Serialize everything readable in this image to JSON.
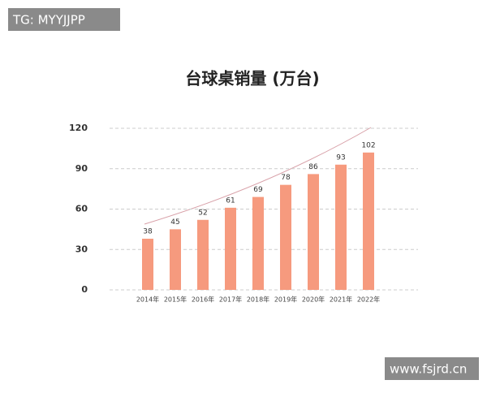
{
  "watermarks": [
    "TG: MYYJJPP",
    "www.fsjrd.cn"
  ],
  "chart_data": {
    "type": "bar",
    "title": "台球桌销量 (万台)",
    "categories": [
      "2014年",
      "2015年",
      "2016年",
      "2017年",
      "2018年",
      "2019年",
      "2020年",
      "2021年",
      "2022年"
    ],
    "values": [
      38,
      45,
      52,
      61,
      69,
      78,
      86,
      93,
      102
    ],
    "color": "#f69a7e",
    "ylim": [
      0,
      120
    ],
    "yticks": [
      0,
      30,
      60,
      90,
      120
    ],
    "grid": true
  }
}
